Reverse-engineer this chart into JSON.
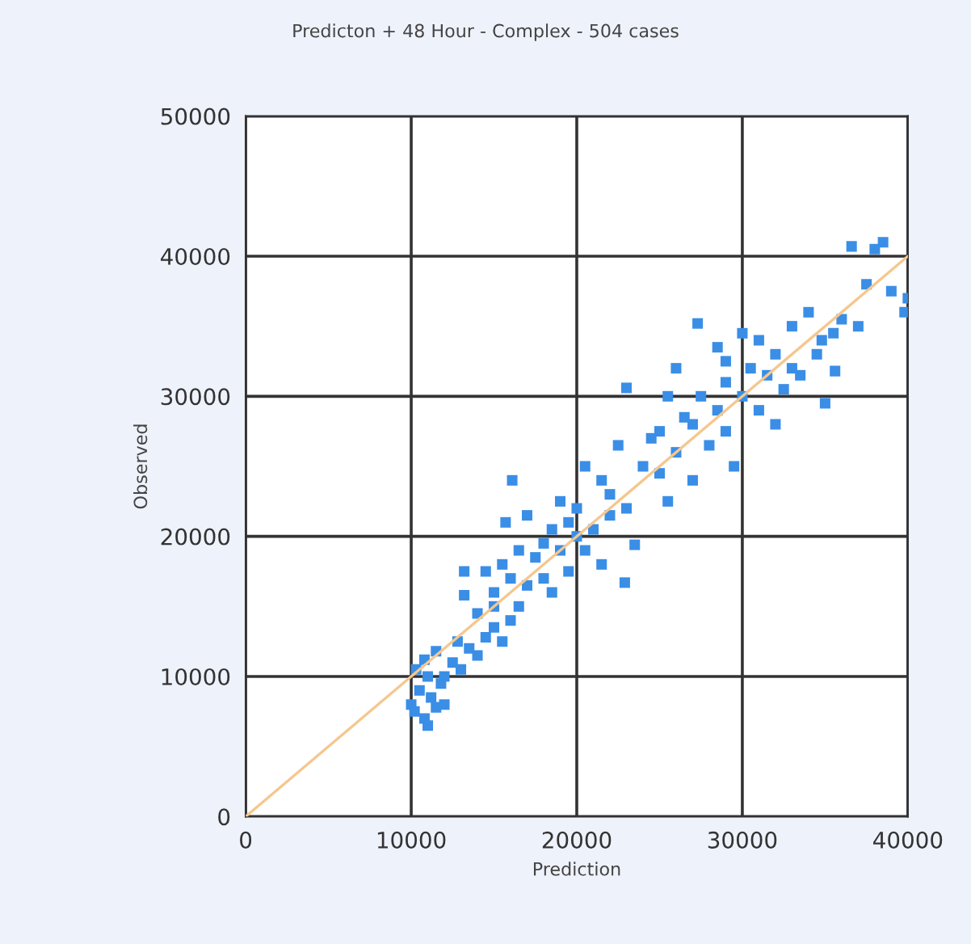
{
  "chart_data": {
    "type": "scatter",
    "title": "Predicton + 48 Hour - Complex - 504 cases",
    "xlabel": "Prediction",
    "ylabel": "Observed",
    "xlim": [
      0,
      40000
    ],
    "ylim": [
      0,
      50000
    ],
    "xticks": [
      0,
      10000,
      20000,
      30000,
      40000
    ],
    "yticks": [
      0,
      10000,
      20000,
      30000,
      40000,
      50000
    ],
    "grid": true,
    "marker": "square",
    "series": [
      {
        "color": "#3a8ee6",
        "x": [
          10000,
          10200,
          10500,
          10800,
          11000,
          11200,
          11500,
          11800,
          12000,
          10300,
          10800,
          11500,
          12500,
          12800,
          13000,
          13500,
          14000,
          14500,
          15000,
          15500,
          16000,
          16500,
          15000,
          14500,
          15500,
          16000,
          16500,
          17000,
          17500,
          18000,
          18500,
          19000,
          19500,
          17000,
          16100,
          13200,
          13200,
          22900,
          23500,
          20000,
          21000,
          22000,
          20500,
          21500,
          22500,
          23000,
          24000,
          24500,
          25000,
          25500,
          26000,
          26500,
          27000,
          27500,
          28000,
          28500,
          29000,
          29000,
          29500,
          30000,
          30500,
          31000,
          31500,
          32000,
          32000,
          32500,
          33000,
          33500,
          34000,
          34500,
          35000,
          35500,
          36000,
          37000,
          37500,
          38000,
          38500,
          39000,
          40000,
          39800,
          26000,
          27300,
          23000,
          25500,
          28500,
          36600,
          30000,
          15700,
          18500,
          19500,
          20500,
          21500,
          22000,
          12000,
          11000,
          14000,
          15000,
          18000,
          19000,
          20000,
          25000,
          27000,
          29000,
          31000,
          33000,
          35600,
          34800
        ],
        "values": [
          8000,
          7500,
          9000,
          7000,
          6500,
          8500,
          7800,
          9500,
          8000,
          10500,
          11200,
          11800,
          11000,
          12500,
          10500,
          12000,
          11500,
          12800,
          13500,
          12500,
          14000,
          15000,
          16000,
          17500,
          18000,
          17000,
          19000,
          16500,
          18500,
          17000,
          20500,
          19000,
          21000,
          21500,
          24000,
          17500,
          15800,
          16700,
          19400,
          22000,
          20500,
          23000,
          25000,
          24000,
          26500,
          22000,
          25000,
          27000,
          24500,
          22500,
          26000,
          28500,
          24000,
          30000,
          26500,
          29000,
          31000,
          27500,
          25000,
          30000,
          32000,
          29000,
          31500,
          28000,
          33000,
          30500,
          35000,
          31500,
          36000,
          33000,
          29500,
          34500,
          35500,
          35000,
          38000,
          40500,
          41000,
          37500,
          37000,
          36000,
          32000,
          35200,
          30600,
          30000,
          33500,
          40700,
          34500,
          21000,
          16000,
          17500,
          19000,
          18000,
          21500,
          10000,
          10000,
          14500,
          15000,
          19500,
          22500,
          20000,
          27500,
          28000,
          32500,
          34000,
          32000,
          31800,
          34000
        ]
      },
      {
        "type": "line",
        "color": "#f5c78e",
        "line_style": "solid",
        "marker": "none",
        "x": [
          0,
          40000
        ],
        "values": [
          0,
          40000
        ]
      }
    ]
  }
}
